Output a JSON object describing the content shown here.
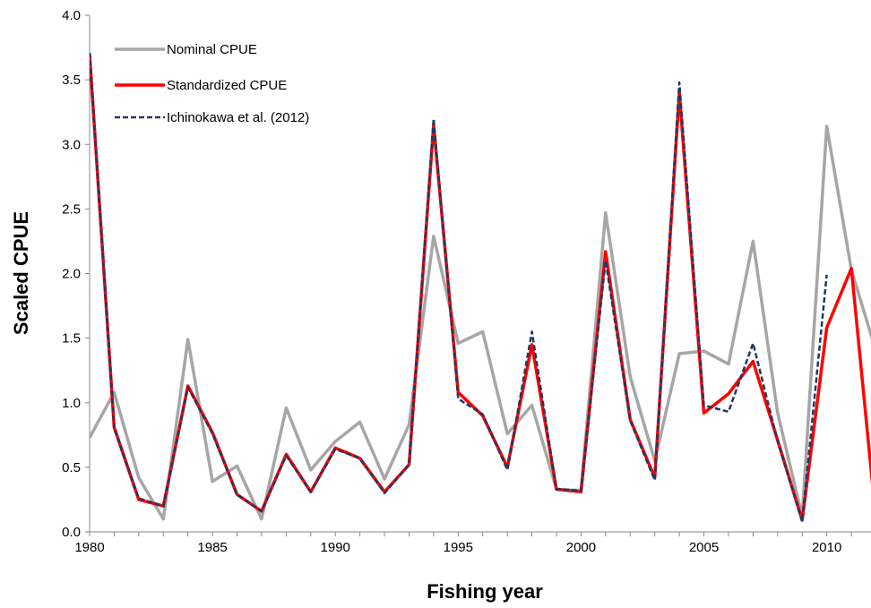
{
  "chart_data": {
    "type": "line",
    "xlabel": "Fishing year",
    "ylabel": "Scaled CPUE",
    "xlim": [
      1980,
      2011.8
    ],
    "ylim": [
      0,
      4.0
    ],
    "xticks": [
      1980,
      1985,
      1990,
      1995,
      2000,
      2005,
      2010
    ],
    "xtick_labels": [
      "1980",
      "1985",
      "1990",
      "1995",
      "2000",
      "2005",
      "2010"
    ],
    "yticks": [
      0,
      0.5,
      1.0,
      1.5,
      2.0,
      2.5,
      3.0,
      3.5,
      4.0
    ],
    "ytick_labels": [
      "0.0",
      "0.5",
      "1.0",
      "1.5",
      "2.0",
      "2.5",
      "3.0",
      "3.5",
      "4.0"
    ],
    "grid": false,
    "legend_position": "top-left",
    "series": [
      {
        "name": "Nominal CPUE",
        "color": "#a6a6a6",
        "style": "solid",
        "x": [
          1980,
          1981,
          1982,
          1983,
          1984,
          1985,
          1986,
          1987,
          1988,
          1989,
          1990,
          1991,
          1992,
          1993,
          1994,
          1995,
          1996,
          1997,
          1998,
          1999,
          2000,
          2001,
          2002,
          2003,
          2004,
          2005,
          2006,
          2007,
          2008,
          2009,
          2010,
          2011,
          2012
        ],
        "values": [
          0.73,
          1.08,
          0.42,
          0.1,
          1.49,
          0.39,
          0.51,
          0.1,
          0.96,
          0.48,
          0.7,
          0.85,
          0.41,
          0.83,
          2.29,
          1.46,
          1.55,
          0.76,
          0.98,
          0.33,
          0.32,
          2.47,
          1.2,
          0.55,
          1.38,
          1.4,
          1.3,
          2.25,
          0.92,
          0.12,
          3.14,
          2.03,
          1.4
        ]
      },
      {
        "name": "Standardized CPUE",
        "color": "#ff0000",
        "style": "solid",
        "x": [
          1980,
          1981,
          1982,
          1983,
          1984,
          1985,
          1986,
          1987,
          1988,
          1989,
          1990,
          1991,
          1992,
          1993,
          1994,
          1995,
          1996,
          1997,
          1998,
          1999,
          2000,
          2001,
          2002,
          2003,
          2004,
          2005,
          2006,
          2007,
          2008,
          2009,
          2010,
          2011,
          2012
        ],
        "values": [
          3.7,
          0.81,
          0.25,
          0.2,
          1.13,
          0.77,
          0.29,
          0.16,
          0.6,
          0.31,
          0.65,
          0.57,
          0.31,
          0.52,
          3.15,
          1.08,
          0.9,
          0.5,
          1.45,
          0.33,
          0.31,
          2.17,
          0.87,
          0.42,
          3.4,
          0.92,
          1.07,
          1.32,
          0.71,
          0.09,
          1.58,
          2.04,
          0.1
        ]
      },
      {
        "name": "Ichinokawa et al. (2012)",
        "color": "#1f3864",
        "style": "dashed",
        "x": [
          1980,
          1981,
          1982,
          1983,
          1984,
          1985,
          1986,
          1987,
          1988,
          1989,
          1990,
          1991,
          1992,
          1993,
          1994,
          1995,
          1996,
          1997,
          1998,
          1999,
          2000,
          2001,
          2002,
          2003,
          2004,
          2005,
          2006,
          2007,
          2008,
          2009,
          2010
        ],
        "values": [
          3.71,
          0.8,
          0.26,
          0.2,
          1.12,
          0.76,
          0.29,
          0.16,
          0.59,
          0.31,
          0.64,
          0.57,
          0.3,
          0.52,
          3.2,
          1.03,
          0.91,
          0.48,
          1.55,
          0.33,
          0.32,
          2.1,
          0.86,
          0.4,
          3.48,
          0.98,
          0.93,
          1.46,
          0.7,
          0.08,
          1.99
        ]
      }
    ]
  }
}
